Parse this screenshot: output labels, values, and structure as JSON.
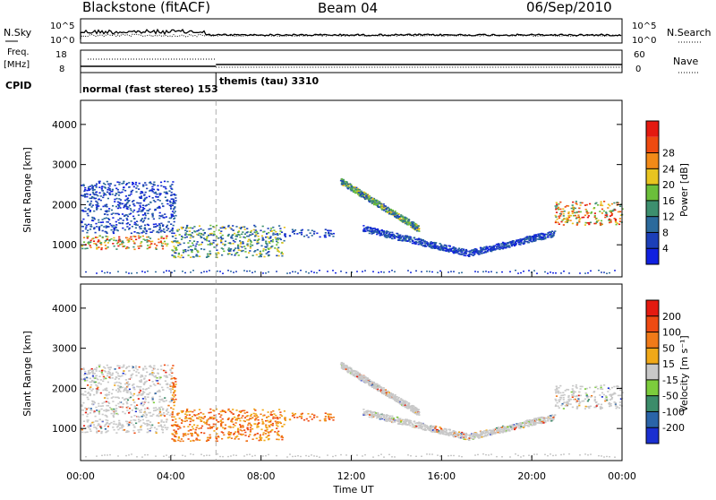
{
  "header": {
    "radar": "Blackstone (fitACF)",
    "beam": "Beam 04",
    "date": "06/Sep/2010"
  },
  "top_panels": {
    "nsky_label": "N.Sky",
    "nsearch_label": "N.Search",
    "left_ticks": [
      "10^5",
      "10^0"
    ],
    "right_ticks": [
      "10^5",
      "10^0"
    ],
    "freq_label_1": "Freq.",
    "freq_label_2": "[MHz]",
    "freq_ticks": [
      "18",
      "8"
    ],
    "nave_label": "Nave",
    "nave_ticks": [
      "60",
      "0"
    ],
    "cpid_label": "CPID",
    "cpid_modes": [
      {
        "text": "normal (fast stereo) 153",
        "start_hour": 0.0
      },
      {
        "text": "themis (tau) 3310",
        "start_hour": 6.0
      }
    ]
  },
  "chart_data": [
    {
      "type": "heatmap",
      "name": "power",
      "xlabel": "",
      "ylabel": "Slant Range [km]",
      "xlim": [
        0,
        24
      ],
      "ylim": [
        200,
        4600
      ],
      "yticks": [
        "1000",
        "2000",
        "3000",
        "4000"
      ],
      "colorbar": {
        "label": "Power [dB]",
        "ticks": [
          "4",
          "8",
          "12",
          "16",
          "20",
          "24",
          "28"
        ],
        "colors": [
          "#1020e0",
          "#1c3fb8",
          "#2c6a9c",
          "#3d8f6e",
          "#6bbf3a",
          "#e8c420",
          "#f28a18",
          "#ee4a10",
          "#e41a10"
        ]
      },
      "regions": [
        {
          "label": "echo band",
          "x_range": [
            0.0,
            3.9
          ],
          "y_range": [
            900,
            1250
          ],
          "level": "high"
        },
        {
          "label": "echo band",
          "x_range": [
            0.0,
            4.2
          ],
          "y_range": [
            1300,
            2600
          ],
          "level": "low"
        },
        {
          "label": "echo band",
          "x_range": [
            4.0,
            9.0
          ],
          "y_range": [
            700,
            1500
          ],
          "level": "mid"
        },
        {
          "label": "echo band",
          "x_range": [
            9.0,
            11.2
          ],
          "y_range": [
            1200,
            1400
          ],
          "level": "low"
        },
        {
          "label": "arc",
          "x_range": [
            11.5,
            15.0
          ],
          "y_range": [
            1400,
            2600
          ],
          "level": "mid"
        },
        {
          "label": "arc",
          "x_range": [
            12.5,
            21.0
          ],
          "y_range": [
            800,
            1600
          ],
          "level": "low"
        },
        {
          "label": "echo band",
          "x_range": [
            21.0,
            24.0
          ],
          "y_range": [
            1500,
            2100
          ],
          "level": "high"
        }
      ]
    },
    {
      "type": "heatmap",
      "name": "velocity",
      "xlabel": "Time UT",
      "ylabel": "Slant Range [km]",
      "xlim": [
        0,
        24
      ],
      "ylim": [
        200,
        4600
      ],
      "xticks": [
        "00:00",
        "04:00",
        "08:00",
        "12:00",
        "16:00",
        "20:00",
        "00:00"
      ],
      "yticks": [
        "1000",
        "2000",
        "3000",
        "4000"
      ],
      "colorbar": {
        "label": "Velocity [m s⁻¹]",
        "ticks": [
          "200",
          "100",
          "50",
          "15",
          "-15",
          "-50",
          "-100",
          "-200"
        ],
        "colors": [
          "#1a2fd0",
          "#2a64a8",
          "#3c8c6a",
          "#7ccc3c",
          "#c8c8c8",
          "#f0a818",
          "#f07a18",
          "#ee4a12",
          "#e41a10"
        ]
      }
    }
  ]
}
